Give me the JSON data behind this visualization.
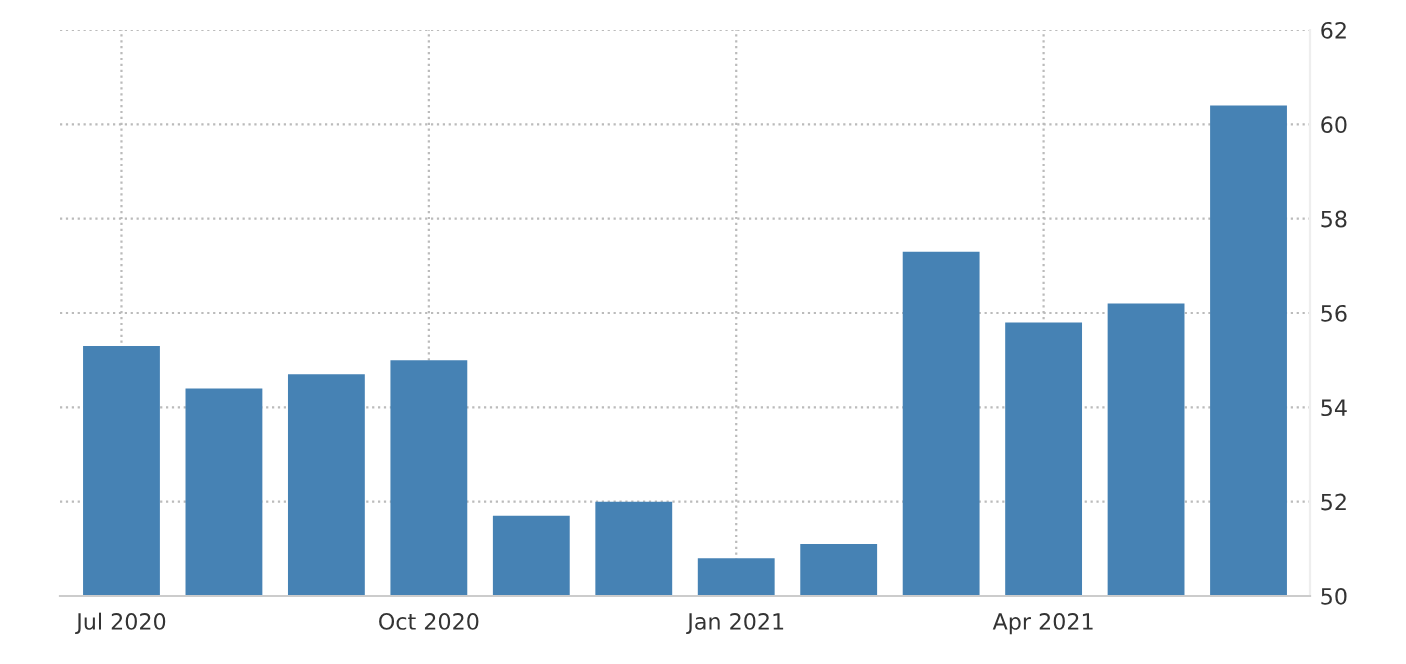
{
  "chart_data": {
    "type": "bar",
    "categories": [
      "Jul 2020",
      null,
      null,
      "Oct 2020",
      null,
      null,
      "Jan 2021",
      null,
      null,
      "Apr 2021",
      null,
      null
    ],
    "values": [
      55.3,
      54.4,
      54.7,
      55.0,
      51.7,
      52.0,
      50.8,
      51.1,
      57.3,
      55.8,
      56.2,
      60.4
    ],
    "color": "#4682b4",
    "ylim": [
      50,
      62
    ],
    "yticks": [
      50,
      52,
      54,
      56,
      58,
      60,
      62
    ],
    "grid": true
  }
}
